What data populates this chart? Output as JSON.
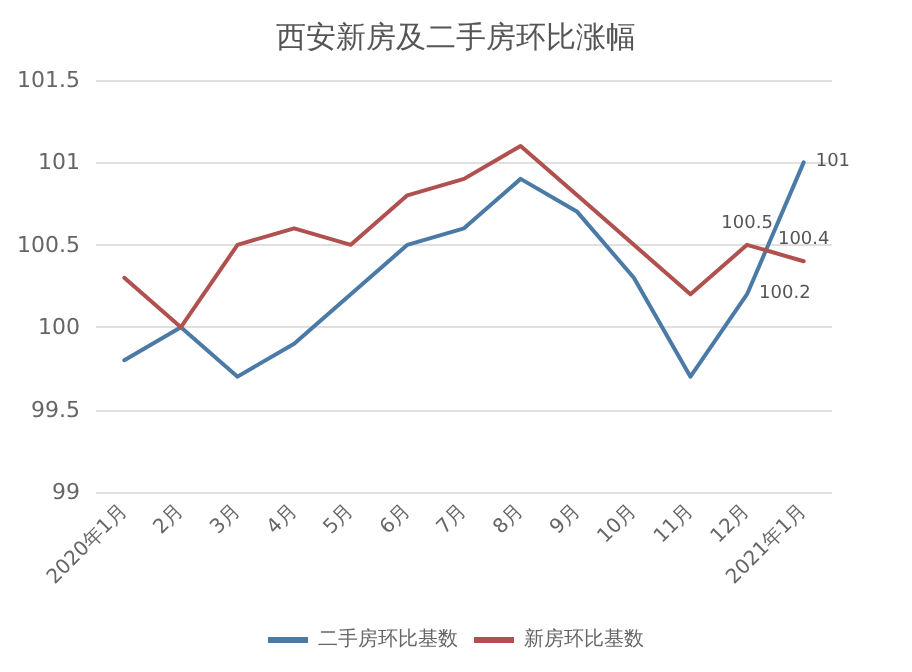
{
  "chart_data": {
    "type": "line",
    "title": "西安新房及二手房环比涨幅",
    "categories": [
      "2020年1月",
      "2月",
      "3月",
      "4月",
      "5月",
      "6月",
      "7月",
      "8月",
      "9月",
      "10月",
      "11月",
      "12月",
      "2021年1月"
    ],
    "series": [
      {
        "name": "二手房环比基数",
        "color": "#4a7aa5",
        "values": [
          99.8,
          100,
          99.7,
          99.9,
          100.2,
          100.5,
          100.6,
          100.9,
          100.7,
          100.3,
          99.7,
          100.2,
          101
        ],
        "value_labels": [
          null,
          null,
          null,
          null,
          null,
          null,
          null,
          null,
          null,
          null,
          null,
          "100.2",
          "101"
        ]
      },
      {
        "name": "新房环比基数",
        "color": "#b0504f",
        "values": [
          100.3,
          100,
          100.5,
          100.6,
          100.5,
          100.8,
          100.9,
          101.1,
          100.8,
          100.5,
          100.2,
          100.5,
          100.4
        ],
        "value_labels": [
          null,
          null,
          null,
          null,
          null,
          null,
          null,
          null,
          null,
          null,
          null,
          "100.5",
          "100.4"
        ]
      }
    ],
    "ylim": [
      99,
      101.5
    ],
    "yticks": [
      99,
      99.5,
      100,
      100.5,
      101,
      101.5
    ],
    "grid": "y",
    "legend": "bottom",
    "marker": "none",
    "line_style": "solid"
  }
}
